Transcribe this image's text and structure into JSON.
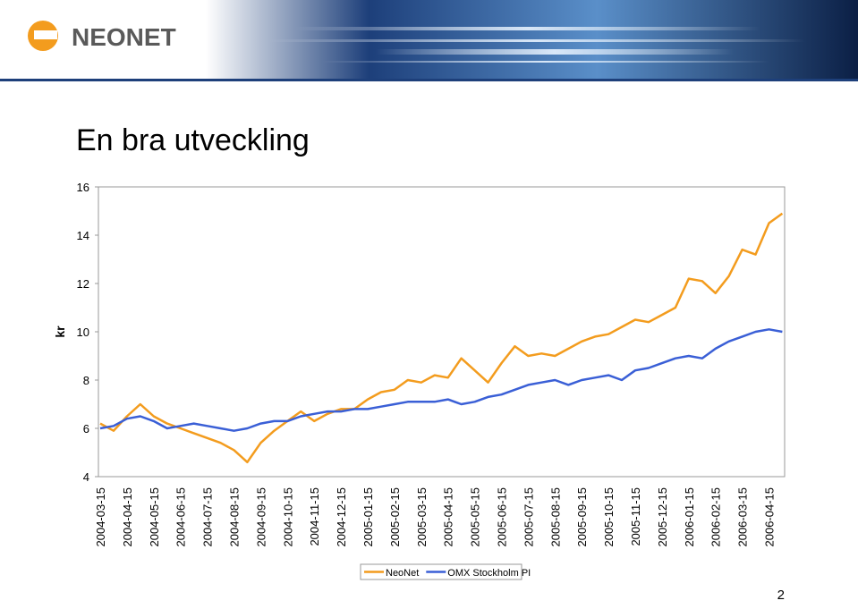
{
  "header": {
    "logo": "NEONET"
  },
  "page_number": "2",
  "chart_data": {
    "type": "line",
    "title": "En bra utveckling",
    "ylabel": "kr",
    "categories": [
      "2004-03-15",
      null,
      "2004-04-15",
      null,
      "2004-05-15",
      null,
      "2004-06-15",
      null,
      "2004-07-15",
      null,
      "2004-08-15",
      null,
      "2004-09-15",
      null,
      "2004-10-15",
      null,
      "2004-11-15",
      null,
      "2004-12-15",
      null,
      "2005-01-15",
      null,
      "2005-02-15",
      null,
      "2005-03-15",
      null,
      "2005-04-15",
      null,
      "2005-05-15",
      null,
      "2005-06-15",
      null,
      "2005-07-15",
      null,
      "2005-08-15",
      null,
      "2005-09-15",
      null,
      "2005-10-15",
      null,
      "2005-11-15",
      null,
      "2005-12-15",
      null,
      "2006-01-15",
      null,
      "2006-02-15",
      null,
      "2006-03-15",
      null,
      "2006-04-15",
      null
    ],
    "series": [
      {
        "name": "NeoNet",
        "color": "#f39c1e",
        "values": [
          6.2,
          5.9,
          6.5,
          7.0,
          6.5,
          6.2,
          6.0,
          5.8,
          5.6,
          5.4,
          5.1,
          4.6,
          5.4,
          5.9,
          6.3,
          6.7,
          6.3,
          6.6,
          6.8,
          6.8,
          7.2,
          7.5,
          7.6,
          8.0,
          7.9,
          8.2,
          8.1,
          8.9,
          8.4,
          7.9,
          8.7,
          9.4,
          9.0,
          9.1,
          9.0,
          9.3,
          9.6,
          9.8,
          9.9,
          10.2,
          10.5,
          10.4,
          10.7,
          11.0,
          12.2,
          12.1,
          11.6,
          12.3,
          13.4,
          13.2,
          14.5,
          14.9
        ]
      },
      {
        "name": "OMX Stockholm PI",
        "color": "#3a5fd6",
        "values": [
          6.0,
          6.1,
          6.4,
          6.5,
          6.3,
          6.0,
          6.1,
          6.2,
          6.1,
          6.0,
          5.9,
          6.0,
          6.2,
          6.3,
          6.3,
          6.5,
          6.6,
          6.7,
          6.7,
          6.8,
          6.8,
          6.9,
          7.0,
          7.1,
          7.1,
          7.1,
          7.2,
          7.0,
          7.1,
          7.3,
          7.4,
          7.6,
          7.8,
          7.9,
          8.0,
          7.8,
          8.0,
          8.1,
          8.2,
          8.0,
          8.4,
          8.5,
          8.7,
          8.9,
          9.0,
          8.9,
          9.3,
          9.6,
          9.8,
          10.0,
          10.1,
          10.0
        ]
      }
    ],
    "ylim": [
      4,
      16
    ],
    "yticks": [
      4,
      6,
      8,
      10,
      12,
      14,
      16
    ],
    "grid": false,
    "legend": "bottom"
  }
}
